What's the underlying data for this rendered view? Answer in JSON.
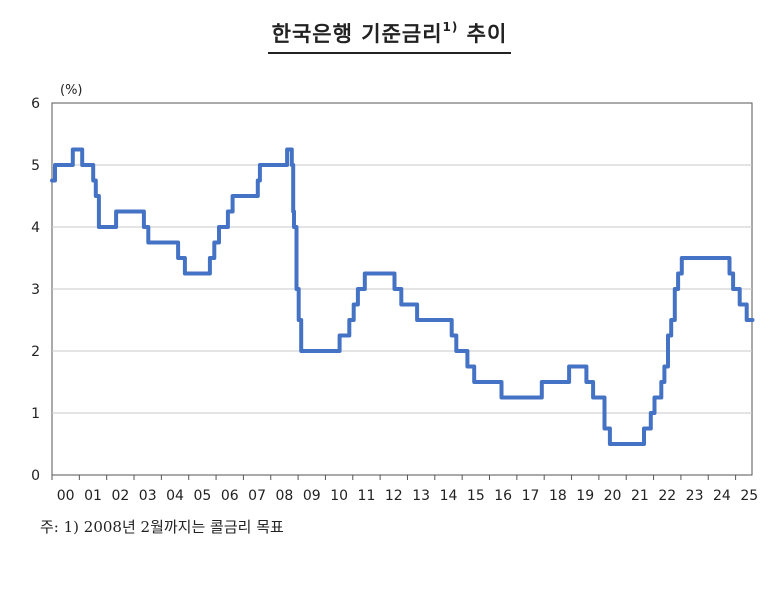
{
  "title": {
    "text": "한국은행  기준금리",
    "superscript": "1)",
    "suffix": " 추이"
  },
  "note": "주:  1)  2008년  2월까지는  콜금리  목표",
  "chart_data": {
    "type": "line",
    "ylabel": "(%)",
    "ylim": [
      0,
      6
    ],
    "yticks": [
      "0",
      "1",
      "2",
      "3",
      "4",
      "5",
      "6"
    ],
    "xlim": [
      2000,
      2025.6
    ],
    "xticks": [
      "00",
      "01",
      "02",
      "03",
      "04",
      "05",
      "06",
      "07",
      "08",
      "09",
      "10",
      "11",
      "12",
      "13",
      "14",
      "15",
      "16",
      "17",
      "18",
      "19",
      "20",
      "21",
      "22",
      "23",
      "24",
      "25"
    ],
    "grid": "horizontal",
    "line_color": "#4472C4",
    "series": [
      {
        "step": true,
        "points": [
          [
            "2000-01-01",
            4.75
          ],
          [
            "2000-02-10",
            5.0
          ],
          [
            "2000-10-05",
            5.25
          ],
          [
            "2001-02-08",
            5.0
          ],
          [
            "2001-07-05",
            4.75
          ],
          [
            "2001-08-09",
            4.5
          ],
          [
            "2001-09-19",
            4.0
          ],
          [
            "2002-05-07",
            4.25
          ],
          [
            "2003-05-13",
            4.0
          ],
          [
            "2003-07-10",
            3.75
          ],
          [
            "2004-08-12",
            3.5
          ],
          [
            "2004-11-11",
            3.25
          ],
          [
            "2005-10-11",
            3.5
          ],
          [
            "2005-12-08",
            3.75
          ],
          [
            "2006-02-09",
            4.0
          ],
          [
            "2006-06-08",
            4.25
          ],
          [
            "2006-08-10",
            4.5
          ],
          [
            "2007-07-12",
            4.75
          ],
          [
            "2007-08-09",
            5.0
          ],
          [
            "2008-08-07",
            5.25
          ],
          [
            "2008-10-09",
            5.0
          ],
          [
            "2008-10-27",
            4.25
          ],
          [
            "2008-11-07",
            4.0
          ],
          [
            "2008-12-11",
            3.0
          ],
          [
            "2009-01-09",
            2.5
          ],
          [
            "2009-02-12",
            2.0
          ],
          [
            "2010-07-09",
            2.25
          ],
          [
            "2010-11-16",
            2.5
          ],
          [
            "2011-01-13",
            2.75
          ],
          [
            "2011-03-10",
            3.0
          ],
          [
            "2011-06-10",
            3.25
          ],
          [
            "2012-07-12",
            3.0
          ],
          [
            "2012-10-11",
            2.75
          ],
          [
            "2013-05-09",
            2.5
          ],
          [
            "2014-08-14",
            2.25
          ],
          [
            "2014-10-15",
            2.0
          ],
          [
            "2015-03-12",
            1.75
          ],
          [
            "2015-06-11",
            1.5
          ],
          [
            "2016-06-09",
            1.25
          ],
          [
            "2017-11-30",
            1.5
          ],
          [
            "2018-11-30",
            1.75
          ],
          [
            "2019-07-18",
            1.5
          ],
          [
            "2019-10-16",
            1.25
          ],
          [
            "2020-03-16",
            0.75
          ],
          [
            "2020-05-28",
            0.5
          ],
          [
            "2021-08-26",
            0.75
          ],
          [
            "2021-11-25",
            1.0
          ],
          [
            "2022-01-14",
            1.25
          ],
          [
            "2022-04-14",
            1.5
          ],
          [
            "2022-05-26",
            1.75
          ],
          [
            "2022-07-13",
            2.25
          ],
          [
            "2022-08-25",
            2.5
          ],
          [
            "2022-10-12",
            3.0
          ],
          [
            "2022-11-24",
            3.25
          ],
          [
            "2023-01-13",
            3.5
          ],
          [
            "2024-10-11",
            3.25
          ],
          [
            "2024-11-28",
            3.0
          ],
          [
            "2025-02-25",
            2.75
          ],
          [
            "2025-05-29",
            2.5
          ],
          [
            "2025-08-15",
            2.5
          ]
        ]
      }
    ]
  }
}
